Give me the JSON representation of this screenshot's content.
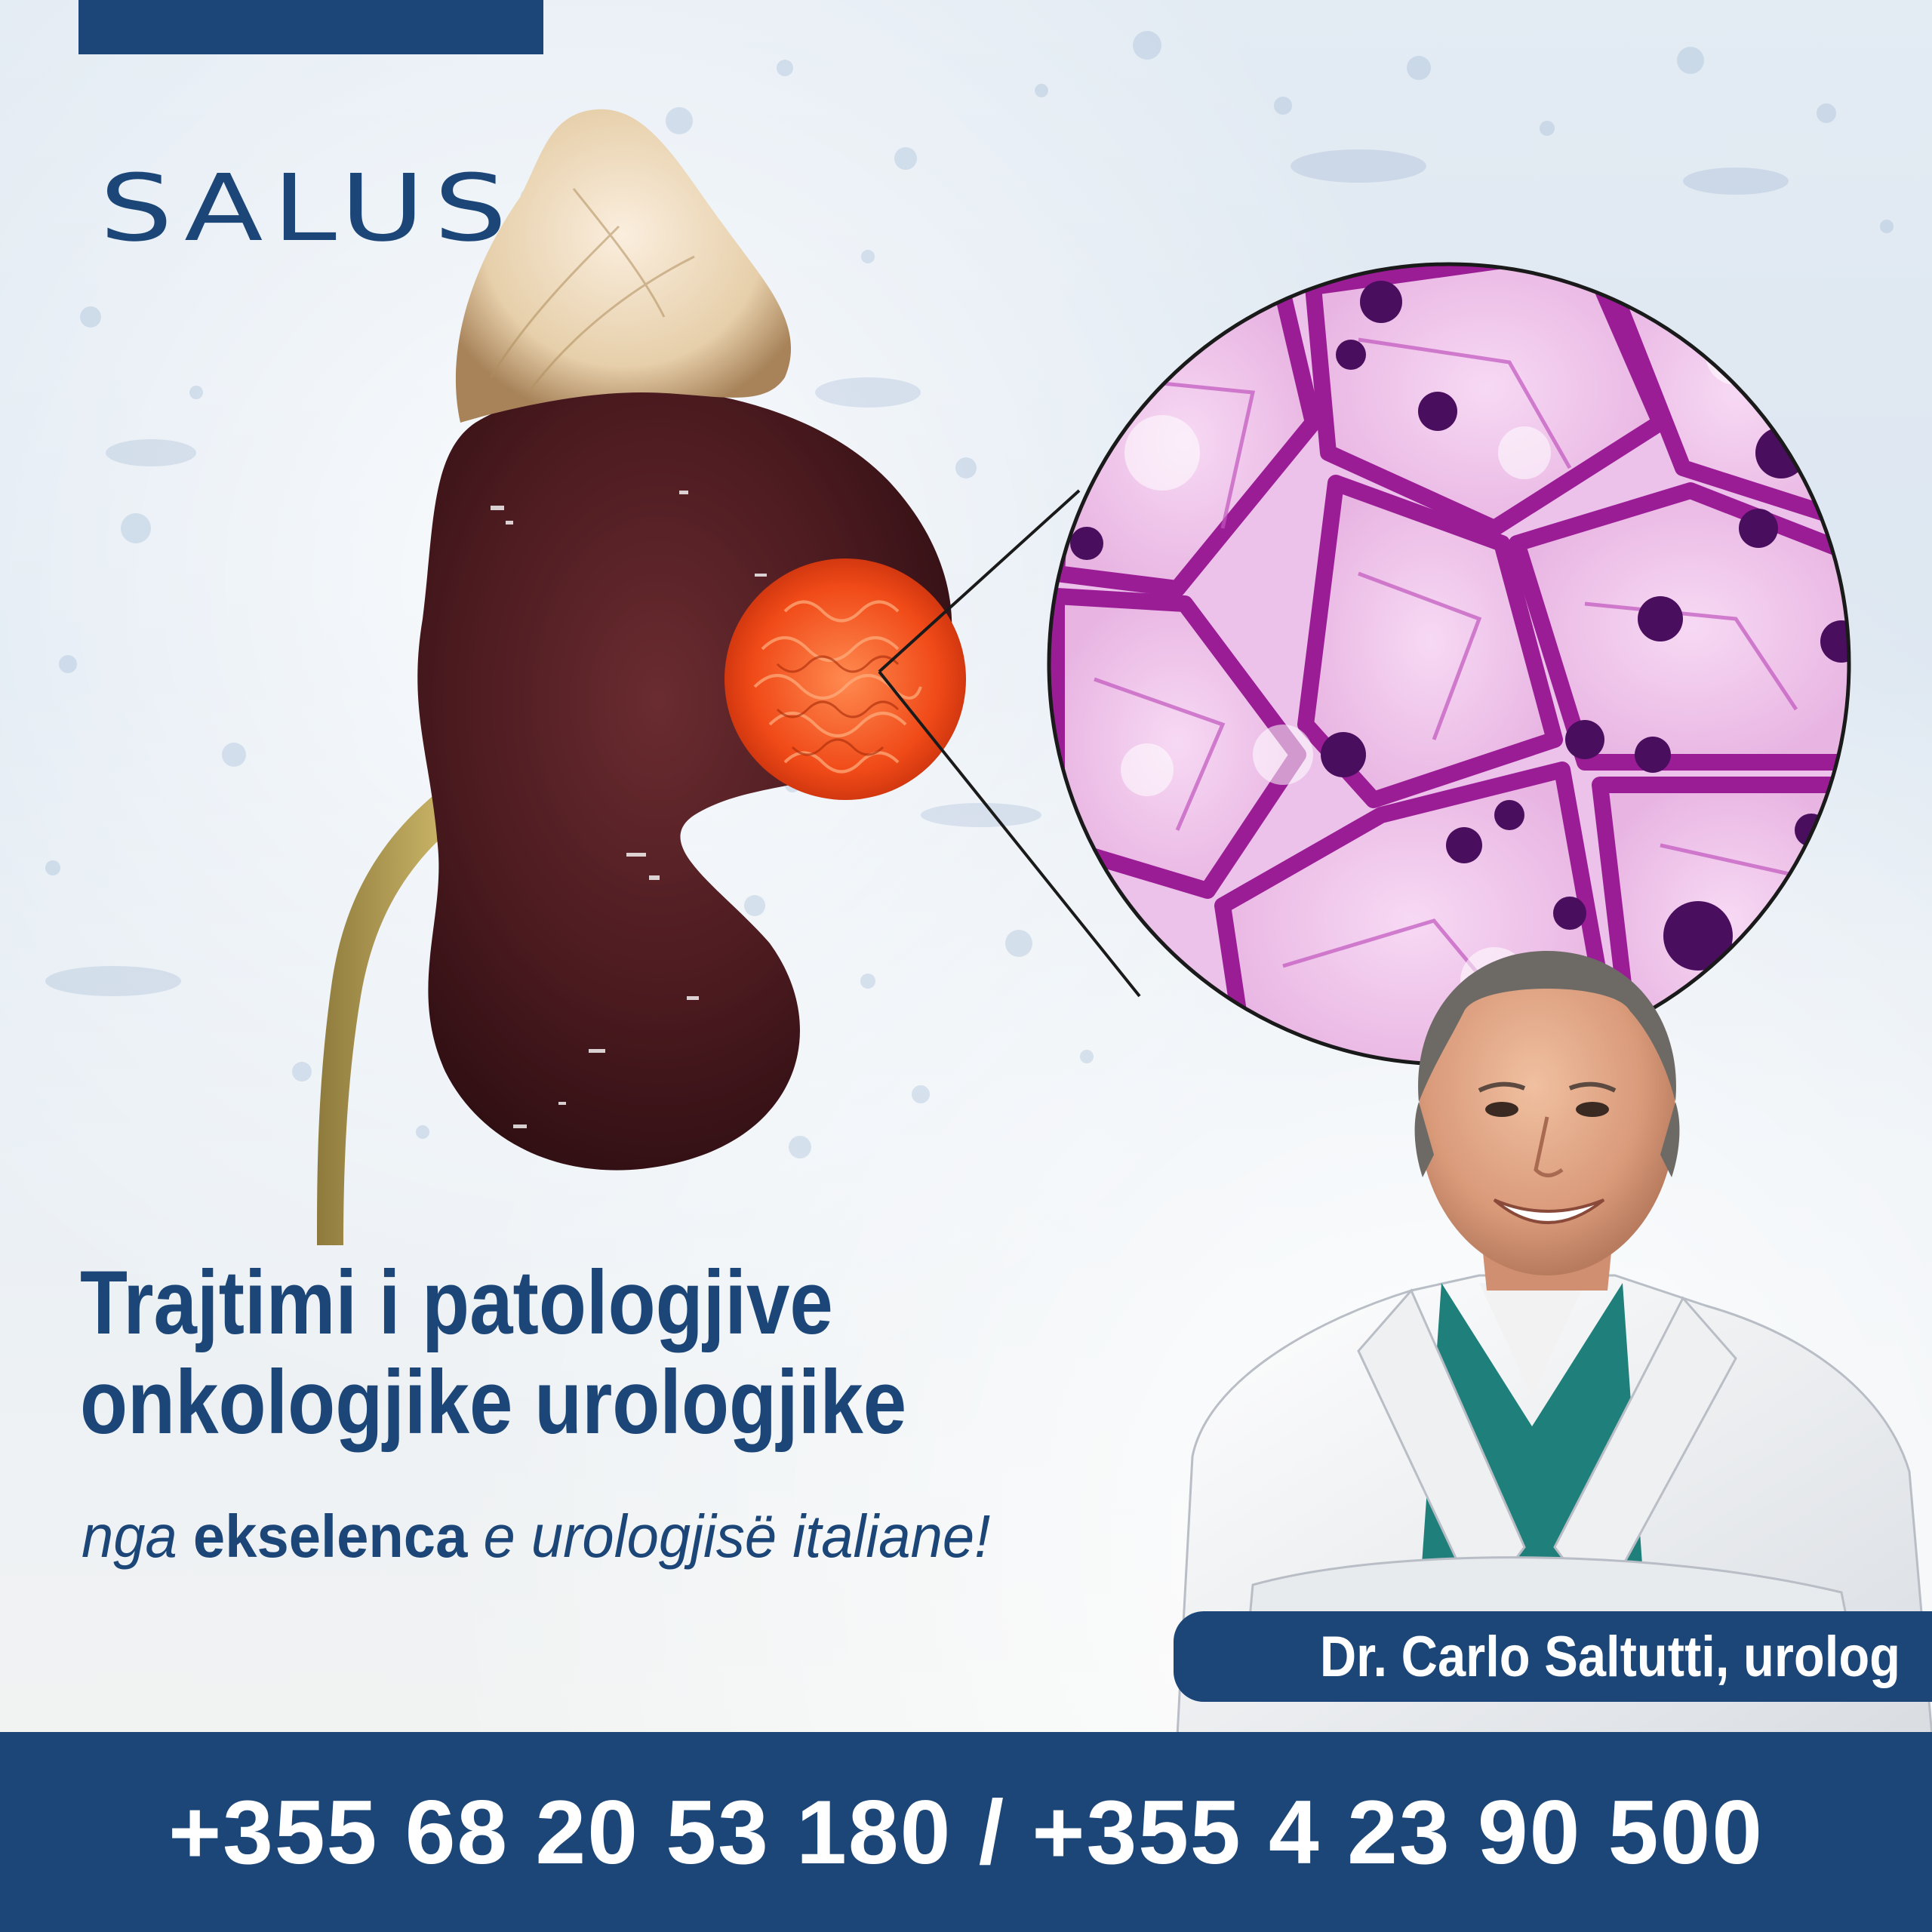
{
  "brand": {
    "logo_text": "SALUS",
    "color": "#1b4677"
  },
  "headline": {
    "line1": "Trajtimi i patologjive",
    "line2": "onkologjike urologjike"
  },
  "tagline": {
    "part1": "nga",
    "part2": "ekselenca",
    "part3": "e urologjisë italiane!"
  },
  "doctor": {
    "name": "Dr. Carlo Saltutti, urolog"
  },
  "contact": {
    "phones": "+355 68 20 53 180 / +355 4 23 90 500"
  },
  "icons": [
    "kidney-illustration",
    "microscope-cell-zoom",
    "doctor-portrait"
  ]
}
